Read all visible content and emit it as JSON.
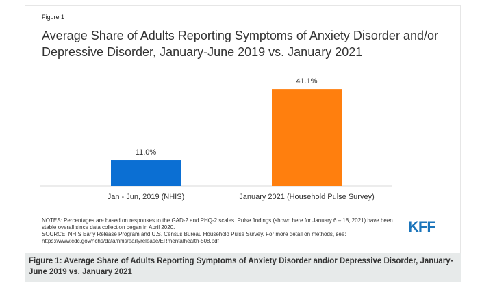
{
  "figure_label": "Figure 1",
  "chart_data": {
    "type": "bar",
    "title": "Average Share of Adults Reporting Symptoms of Anxiety Disorder and/or Depressive Disorder, January-June 2019 vs. January 2021",
    "categories": [
      "Jan - Jun, 2019 (NHIS)",
      "January 2021 (Household Pulse Survey)"
    ],
    "values": [
      11.0,
      41.1
    ],
    "data_labels": [
      "11.0%",
      "41.1%"
    ],
    "colors": [
      "#0b6fd3",
      "#ff7f0e"
    ],
    "ylim": [
      0,
      42
    ],
    "xlabel": "",
    "ylabel": "",
    "grid": false
  },
  "notes": {
    "line1": "NOTES: Percentages are based on responses to the GAD-2 and PHQ-2 scales. Pulse findings (shown here for January 6 – 18, 2021) have been stable overall since data collection began in April 2020.",
    "line2": "SOURCE: NHIS Early Release Program and U.S. Census Bureau Household Pulse Survey. For more detail on methods, see: https://www.cdc.gov/nchs/data/nhis/earlyrelease/ERmentalhealth-508.pdf"
  },
  "logo_text": "KFF",
  "caption": "Figure 1: Average Share of Adults Reporting Symptoms of Anxiety Disorder and/or Depressive Disorder, January-June 2019 vs. January 2021"
}
